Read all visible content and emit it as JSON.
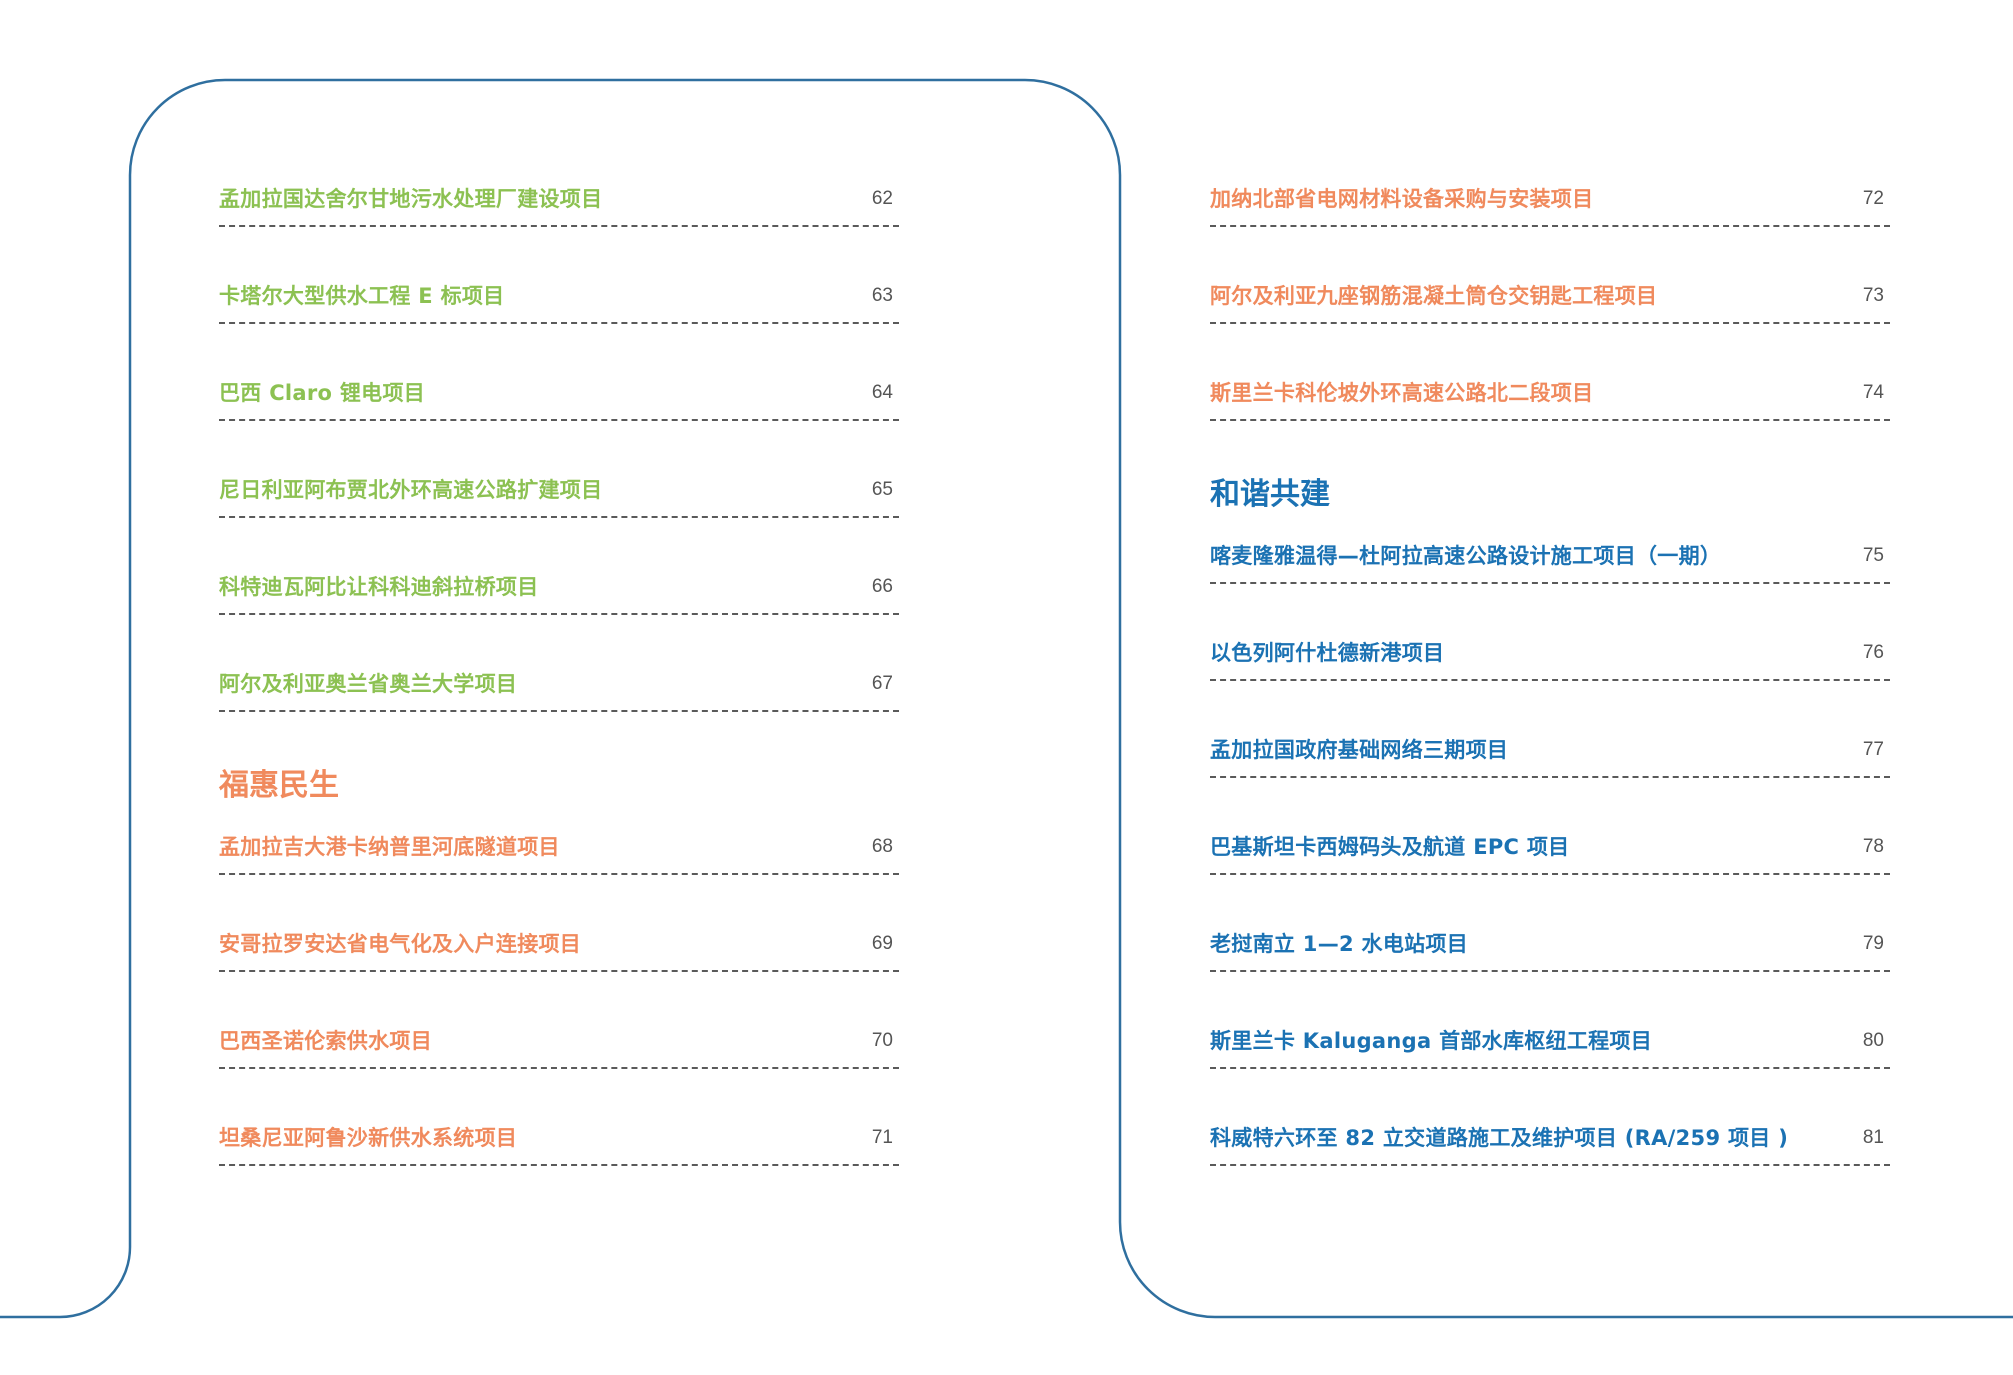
{
  "colors": {
    "green": "#8cc152",
    "orange": "#f08a5d",
    "blue": "#1b72b3",
    "frame": "#2f6f9f"
  },
  "left": {
    "entries_a": [
      {
        "title": "孟加拉国达舍尔甘地污水处理厂建设项目",
        "page": "62"
      },
      {
        "title": "卡塔尔大型供水工程 E 标项目",
        "page": "63"
      },
      {
        "title": "巴西 Claro 锂电项目",
        "page": "64"
      },
      {
        "title": "尼日利亚阿布贾北外环高速公路扩建项目",
        "page": "65"
      },
      {
        "title": "科特迪瓦阿比让科科迪斜拉桥项目",
        "page": "66"
      },
      {
        "title": "阿尔及利亚奥兰省奥兰大学项目",
        "page": "67"
      }
    ],
    "section_heading": "福惠民生",
    "entries_b": [
      {
        "title": "孟加拉吉大港卡纳普里河底隧道项目",
        "page": "68"
      },
      {
        "title": "安哥拉罗安达省电气化及入户连接项目",
        "page": "69"
      },
      {
        "title": "巴西圣诺伦索供水项目",
        "page": "70"
      },
      {
        "title": "坦桑尼亚阿鲁沙新供水系统项目",
        "page": "71"
      }
    ]
  },
  "right": {
    "entries_a": [
      {
        "title": "加纳北部省电网材料设备采购与安装项目",
        "page": "72"
      },
      {
        "title": "阿尔及利亚九座钢筋混凝土筒仓交钥匙工程项目",
        "page": "73"
      },
      {
        "title": "斯里兰卡科伦坡外环高速公路北二段项目",
        "page": "74"
      }
    ],
    "section_heading": "和谐共建",
    "entries_b": [
      {
        "title": "喀麦隆雅温得—杜阿拉高速公路设计施工项目（一期）",
        "page": "75"
      },
      {
        "title": "以色列阿什杜德新港项目",
        "page": "76"
      },
      {
        "title": "孟加拉国政府基础网络三期项目",
        "page": "77"
      },
      {
        "title": "巴基斯坦卡西姆码头及航道 EPC 项目",
        "page": "78"
      },
      {
        "title": "老挝南立 1—2 水电站项目",
        "page": "79"
      },
      {
        "title": "斯里兰卡 Kaluganga 首部水库枢纽工程项目",
        "page": "80"
      },
      {
        "title": "科威特六环至 82 立交道路施工及维护项目 (RA/259 项目 )",
        "page": "81"
      }
    ]
  }
}
